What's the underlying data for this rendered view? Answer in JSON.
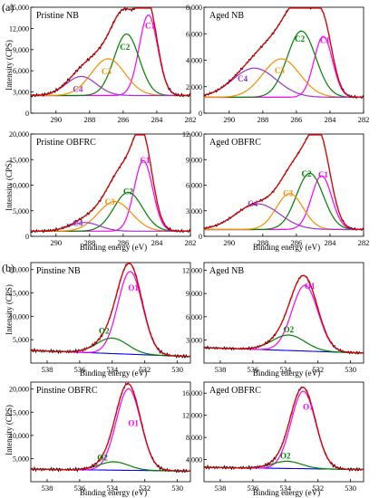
{
  "figure": {
    "label_a": "(a)",
    "label_b": "(b)",
    "ylabel": "Intensity (CPS)",
    "xlabel": "Binding energy (eV)"
  },
  "chart_data": [
    {
      "type": "line",
      "title": "Pristine NB",
      "xlim": [
        282,
        291.5
      ],
      "ylim": [
        0,
        15000
      ],
      "xticks": [
        290,
        288,
        286,
        284,
        282
      ],
      "yticks": [
        0,
        3000,
        6000,
        9000,
        12000,
        15000
      ],
      "ytick_labels": [
        "0",
        "3,000",
        "6,000",
        "9,000",
        "12,000",
        "15,000"
      ],
      "background": 2500,
      "peaks": [
        {
          "name": "C1",
          "center": 284.5,
          "height": 11400,
          "sigma": 0.55,
          "color": "#ff00ff",
          "label_x": 284.4,
          "label_y": 12000
        },
        {
          "name": "C2",
          "center": 285.8,
          "height": 8700,
          "sigma": 0.75,
          "color": "#008000",
          "label_x": 285.9,
          "label_y": 9000
        },
        {
          "name": "C3",
          "center": 286.9,
          "height": 5200,
          "sigma": 1.0,
          "color": "#ff8c00",
          "label_x": 287.0,
          "label_y": 5500
        },
        {
          "name": "C4",
          "center": 288.5,
          "height": 2700,
          "sigma": 0.9,
          "color": "#9933cc",
          "label_x": 288.7,
          "label_y": 3000
        }
      ]
    },
    {
      "type": "line",
      "title": "Aged NB",
      "xlim": [
        282,
        291.5
      ],
      "ylim": [
        0,
        8000
      ],
      "xticks": [
        290,
        288,
        286,
        284,
        282
      ],
      "yticks": [
        0,
        2000,
        4000,
        6000,
        8000
      ],
      "ytick_labels": [
        "0",
        "2,000",
        "4,000",
        "6,000",
        "8,000"
      ],
      "background": 1200,
      "peaks": [
        {
          "name": "C1",
          "center": 284.4,
          "height": 4600,
          "sigma": 0.55,
          "color": "#ff00ff",
          "label_x": 284.3,
          "label_y": 5300
        },
        {
          "name": "C2",
          "center": 285.7,
          "height": 5000,
          "sigma": 0.85,
          "color": "#008000",
          "label_x": 285.8,
          "label_y": 5400
        },
        {
          "name": "C3",
          "center": 286.9,
          "height": 2900,
          "sigma": 1.1,
          "color": "#ff8c00",
          "label_x": 287.0,
          "label_y": 3000
        },
        {
          "name": "C4",
          "center": 288.5,
          "height": 2200,
          "sigma": 1.3,
          "color": "#9933cc",
          "label_x": 289.2,
          "label_y": 2400
        }
      ]
    },
    {
      "type": "line",
      "title": "Pristine OBFRC",
      "xlim": [
        282,
        291.5
      ],
      "ylim": [
        0,
        20000
      ],
      "xticks": [
        290,
        288,
        286,
        284,
        282
      ],
      "yticks": [
        0,
        5000,
        10000,
        15000,
        20000
      ],
      "ytick_labels": [
        "0",
        "5,000",
        "10,000",
        "15,000",
        "20,000"
      ],
      "background": 1000,
      "peaks": [
        {
          "name": "C1",
          "center": 284.8,
          "height": 13800,
          "sigma": 0.55,
          "color": "#ff00ff",
          "label_x": 284.7,
          "label_y": 14300
        },
        {
          "name": "C2",
          "center": 285.7,
          "height": 7600,
          "sigma": 0.85,
          "color": "#008000",
          "label_x": 285.7,
          "label_y": 8200
        },
        {
          "name": "C3",
          "center": 286.5,
          "height": 5800,
          "sigma": 1.0,
          "color": "#ff8c00",
          "label_x": 286.8,
          "label_y": 6200
        },
        {
          "name": "C4",
          "center": 288.3,
          "height": 1700,
          "sigma": 0.9,
          "color": "#9933cc",
          "label_x": 288.7,
          "label_y": 2000
        }
      ]
    },
    {
      "type": "line",
      "title": "Aged  OBFRC",
      "xlim": [
        282,
        291.5
      ],
      "ylim": [
        0,
        12000
      ],
      "xticks": [
        290,
        288,
        286,
        284,
        282
      ],
      "yticks": [
        0,
        3000,
        6000,
        9000,
        12000
      ],
      "ytick_labels": [
        "0",
        "3,000",
        "6,000",
        "9,000",
        "12,000"
      ],
      "background": 800,
      "peaks": [
        {
          "name": "C1",
          "center": 284.5,
          "height": 6300,
          "sigma": 0.6,
          "color": "#ff00ff",
          "label_x": 284.4,
          "label_y": 6900
        },
        {
          "name": "C2",
          "center": 285.2,
          "height": 6600,
          "sigma": 0.8,
          "color": "#008000",
          "label_x": 285.4,
          "label_y": 7000
        },
        {
          "name": "C3",
          "center": 286.4,
          "height": 4200,
          "sigma": 0.8,
          "color": "#ff8c00",
          "label_x": 286.5,
          "label_y": 4700
        },
        {
          "name": "C4",
          "center": 288.3,
          "height": 3000,
          "sigma": 1.3,
          "color": "#9933cc",
          "label_x": 288.6,
          "label_y": 3500
        }
      ]
    },
    {
      "type": "line",
      "title": "Pinstine NB",
      "xlim": [
        529.2,
        539
      ],
      "ylim": [
        0,
        21500
      ],
      "xticks": [
        538,
        536,
        534,
        532,
        530
      ],
      "yticks": [
        5000,
        10000,
        15000,
        20000
      ],
      "ytick_labels": [
        "5,000",
        "10,000",
        "15,000",
        "20,000"
      ],
      "baseline": {
        "start": 2700,
        "end": 1400,
        "color": "#0000ff"
      },
      "peaks": [
        {
          "name": "O1",
          "center": 532.9,
          "height": 17700,
          "sigma": 0.75,
          "color": "#ff00ff",
          "label_x": 532.7,
          "label_y": 15500
        },
        {
          "name": "O2",
          "center": 534.0,
          "height": 3300,
          "sigma": 0.95,
          "color": "#008000",
          "label_x": 534.5,
          "label_y": 6300
        }
      ]
    },
    {
      "type": "line",
      "title": "Aged NB",
      "xlim": [
        529.2,
        539
      ],
      "ylim": [
        0,
        13000
      ],
      "xticks": [
        538,
        536,
        534,
        532,
        530
      ],
      "yticks": [
        3000,
        6000,
        9000,
        12000
      ],
      "ytick_labels": [
        "3,000",
        "6,000",
        "9,000",
        "12,000"
      ],
      "baseline": {
        "start": 2000,
        "end": 1300,
        "color": "#0000ff"
      },
      "peaks": [
        {
          "name": "O1",
          "center": 532.8,
          "height": 8500,
          "sigma": 0.8,
          "color": "#ff00ff",
          "label_x": 532.5,
          "label_y": 9600
        },
        {
          "name": "O2",
          "center": 533.8,
          "height": 2000,
          "sigma": 1.0,
          "color": "#008000",
          "label_x": 533.8,
          "label_y": 4000
        }
      ]
    },
    {
      "type": "line",
      "title": "Pinstine OBFRC",
      "xlim": [
        529.2,
        539
      ],
      "ylim": [
        0,
        21500
      ],
      "xticks": [
        538,
        536,
        534,
        532,
        530
      ],
      "yticks": [
        5000,
        10000,
        15000,
        20000
      ],
      "ytick_labels": [
        "5,000",
        "10,000",
        "15,000",
        "20,000"
      ],
      "baseline": {
        "start": 2700,
        "end": 2300,
        "color": "#0000ff"
      },
      "peaks": [
        {
          "name": "O1",
          "center": 533.0,
          "height": 17600,
          "sigma": 0.75,
          "color": "#ff00ff",
          "label_x": 532.7,
          "label_y": 12000
        },
        {
          "name": "O2",
          "center": 533.9,
          "height": 1800,
          "sigma": 0.9,
          "color": "#008000",
          "label_x": 534.6,
          "label_y": 4600
        }
      ]
    },
    {
      "type": "line",
      "title": "Aged OBFRC",
      "xlim": [
        529.2,
        539
      ],
      "ylim": [
        0,
        18000
      ],
      "xticks": [
        538,
        536,
        534,
        532,
        530
      ],
      "yticks": [
        4000,
        8000,
        12000,
        16000
      ],
      "ytick_labels": [
        "4,000",
        "8,000",
        "12,000",
        "16,000"
      ],
      "baseline": {
        "start": 2600,
        "end": 2200,
        "color": "#0000ff"
      },
      "peaks": [
        {
          "name": "O1",
          "center": 532.9,
          "height": 14000,
          "sigma": 0.75,
          "color": "#ff00ff",
          "label_x": 532.6,
          "label_y": 13000
        },
        {
          "name": "O2",
          "center": 533.9,
          "height": 1300,
          "sigma": 0.9,
          "color": "#008000",
          "label_x": 534.0,
          "label_y": 4200
        }
      ]
    }
  ]
}
